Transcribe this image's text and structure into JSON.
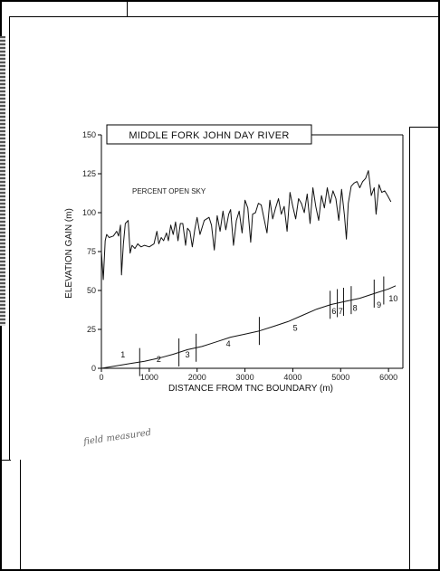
{
  "chart_data": {
    "type": "line",
    "title": "MIDDLE FORK JOHN DAY RIVER",
    "xlabel": "DISTANCE FROM TNC BOUNDARY (m)",
    "ylabel": "ELEVATION GAIN (m)",
    "xlim": [
      0,
      6300
    ],
    "ylim": [
      0,
      150
    ],
    "x_ticks": [
      "0",
      "1000",
      "2000",
      "3000",
      "4000",
      "5000",
      "6000"
    ],
    "y_ticks": [
      "0",
      "25",
      "50",
      "75",
      "100",
      "125",
      "150"
    ],
    "annotation": "PERCENT OPEN SKY",
    "series": [
      {
        "name": "PERCENT OPEN SKY",
        "x": [
          0,
          40,
          80,
          110,
          160,
          250,
          320,
          360,
          400,
          420,
          460,
          500,
          560,
          600,
          640,
          700,
          760,
          790,
          830,
          900,
          1000,
          1100,
          1160,
          1200,
          1250,
          1300,
          1360,
          1400,
          1450,
          1500,
          1550,
          1600,
          1650,
          1700,
          1760,
          1800,
          1850,
          1900,
          1950,
          2000,
          2060,
          2150,
          2250,
          2300,
          2360,
          2420,
          2480,
          2540,
          2600,
          2660,
          2700,
          2760,
          2820,
          2880,
          2940,
          3000,
          3060,
          3120,
          3160,
          3220,
          3280,
          3340,
          3400,
          3460,
          3520,
          3580,
          3640,
          3700,
          3760,
          3820,
          3880,
          3940,
          4000,
          4060,
          4120,
          4180,
          4240,
          4300,
          4360,
          4420,
          4480,
          4540,
          4600,
          4660,
          4720,
          4780,
          4840,
          4900,
          4960,
          5020,
          5080,
          5120,
          5160,
          5220,
          5280,
          5340,
          5400,
          5460,
          5520,
          5580,
          5640,
          5700,
          5740,
          5800,
          5860,
          5920,
          5980,
          6050
        ],
        "y": [
          75,
          57,
          82,
          86,
          84,
          85,
          88,
          85,
          92,
          60,
          80,
          93,
          95,
          74,
          79,
          77,
          80,
          79,
          78,
          79,
          78,
          80,
          88,
          80,
          84,
          82,
          87,
          82,
          92,
          86,
          94,
          82,
          93,
          93,
          79,
          90,
          88,
          78,
          89,
          97,
          86,
          95,
          97,
          92,
          76,
          98,
          88,
          101,
          89,
          99,
          102,
          79,
          95,
          101,
          87,
          108,
          103,
          81,
          99,
          100,
          106,
          105,
          96,
          87,
          108,
          96,
          103,
          109,
          99,
          104,
          88,
          113,
          104,
          96,
          109,
          106,
          100,
          112,
          93,
          116,
          104,
          95,
          111,
          103,
          116,
          106,
          114,
          109,
          95,
          115,
          98,
          83,
          106,
          117,
          119,
          120,
          116,
          120,
          122,
          127,
          111,
          116,
          99,
          118,
          113,
          114,
          111,
          107
        ]
      },
      {
        "name": "ELEVATION GAIN",
        "x": [
          0,
          300,
          600,
          900,
          1200,
          1500,
          1800,
          2100,
          2400,
          2700,
          3000,
          3300,
          3600,
          3900,
          4200,
          4500,
          4800,
          5100,
          5400,
          5700,
          6000,
          6150
        ],
        "y": [
          0,
          1.5,
          3,
          4.5,
          6.5,
          9,
          12,
          14,
          17,
          20,
          22,
          24,
          27,
          30,
          34,
          38,
          41,
          43,
          45,
          48,
          51,
          53
        ]
      }
    ],
    "segment_boundaries_x": [
      800,
      1620,
      1980,
      3300,
      4780,
      4930,
      5060,
      5220,
      5700,
      5900
    ],
    "segments": [
      {
        "label": "1",
        "x": 450,
        "y": 7
      },
      {
        "label": "2",
        "x": 1200,
        "y": 4
      },
      {
        "label": "3",
        "x": 1800,
        "y": 7
      },
      {
        "label": "4",
        "x": 2650,
        "y": 14
      },
      {
        "label": "5",
        "x": 4050,
        "y": 24
      },
      {
        "label": "6",
        "x": 4860,
        "y": 35
      },
      {
        "label": "7",
        "x": 5000,
        "y": 35
      },
      {
        "label": "8",
        "x": 5300,
        "y": 37
      },
      {
        "label": "9",
        "x": 5800,
        "y": 39
      },
      {
        "label": "10",
        "x": 6100,
        "y": 43
      }
    ]
  },
  "handwritten_note": "field measured"
}
